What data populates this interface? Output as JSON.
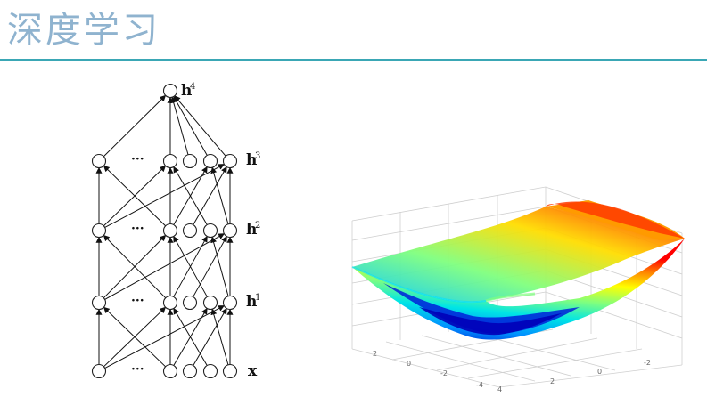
{
  "slide": {
    "title": "深度学习"
  },
  "network": {
    "layers": [
      {
        "label": "h",
        "sup": "4"
      },
      {
        "label": "h",
        "sup": "3"
      },
      {
        "label": "h",
        "sup": "2"
      },
      {
        "label": "h",
        "sup": "1"
      },
      {
        "label": "x",
        "sup": ""
      }
    ],
    "ellipsis": "···"
  },
  "surface_plot": {
    "x_ticks": [
      "2",
      "0",
      "-2",
      "-4"
    ],
    "y_ticks": [
      "4",
      "2",
      "0",
      "-2"
    ],
    "colormap": [
      "#0000c8",
      "#0090ff",
      "#00e5e5",
      "#7fff7f",
      "#ffff00",
      "#ff8c00",
      "#ff0000"
    ]
  }
}
